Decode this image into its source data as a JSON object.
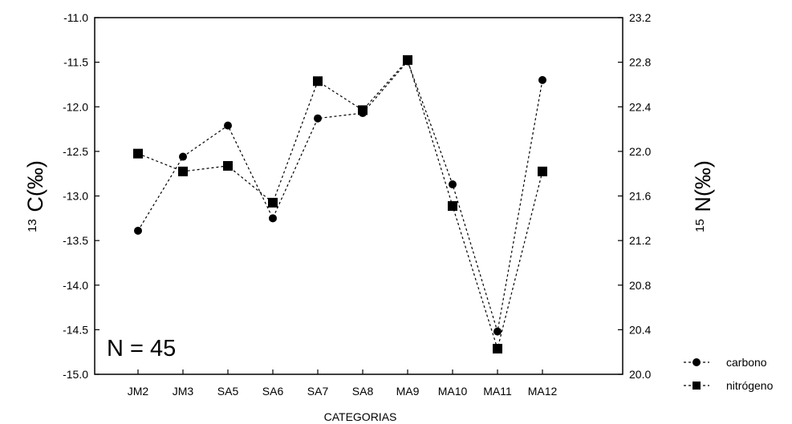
{
  "chart_data": {
    "type": "line",
    "categories": [
      "JM2",
      "JM3",
      "SA5",
      "SA6",
      "SA7",
      "SA8",
      "MA9",
      "MA10",
      "MA11",
      "MA12"
    ],
    "series": [
      {
        "name": "carbono",
        "axis": "left",
        "marker": "circle",
        "values": [
          -13.39,
          -12.56,
          -12.21,
          -13.25,
          -12.13,
          -12.07,
          -11.49,
          -12.87,
          -14.52,
          -11.7
        ]
      },
      {
        "name": "nitrógeno",
        "axis": "right",
        "marker": "square",
        "values": [
          21.98,
          21.82,
          21.87,
          21.54,
          22.63,
          22.37,
          22.82,
          21.51,
          20.23,
          21.82
        ]
      }
    ],
    "xlabel": "CATEGORIAS",
    "ylabel_left": {
      "superscript": "13",
      "text": "C(‰)"
    },
    "ylabel_right": {
      "superscript": "15",
      "text": "N(‰)"
    },
    "ylim_left": [
      -15.0,
      -11.0
    ],
    "ylim_right": [
      20.0,
      23.2
    ],
    "yticks_left": [
      "-11.0",
      "-11.5",
      "-12.0",
      "-12.5",
      "-13.0",
      "-13.5",
      "-14.0",
      "-14.5",
      "-15.0"
    ],
    "yticks_right": [
      "23.2",
      "22.8",
      "22.4",
      "22.0",
      "21.6",
      "21.2",
      "20.8",
      "20.4",
      "20.0"
    ],
    "annotation": "N = 45",
    "grid": false,
    "line_style": "dotted",
    "legend_position": "bottom-right",
    "colors": {
      "line": "#000000",
      "marker": "#000000",
      "background": "#ffffff"
    }
  }
}
